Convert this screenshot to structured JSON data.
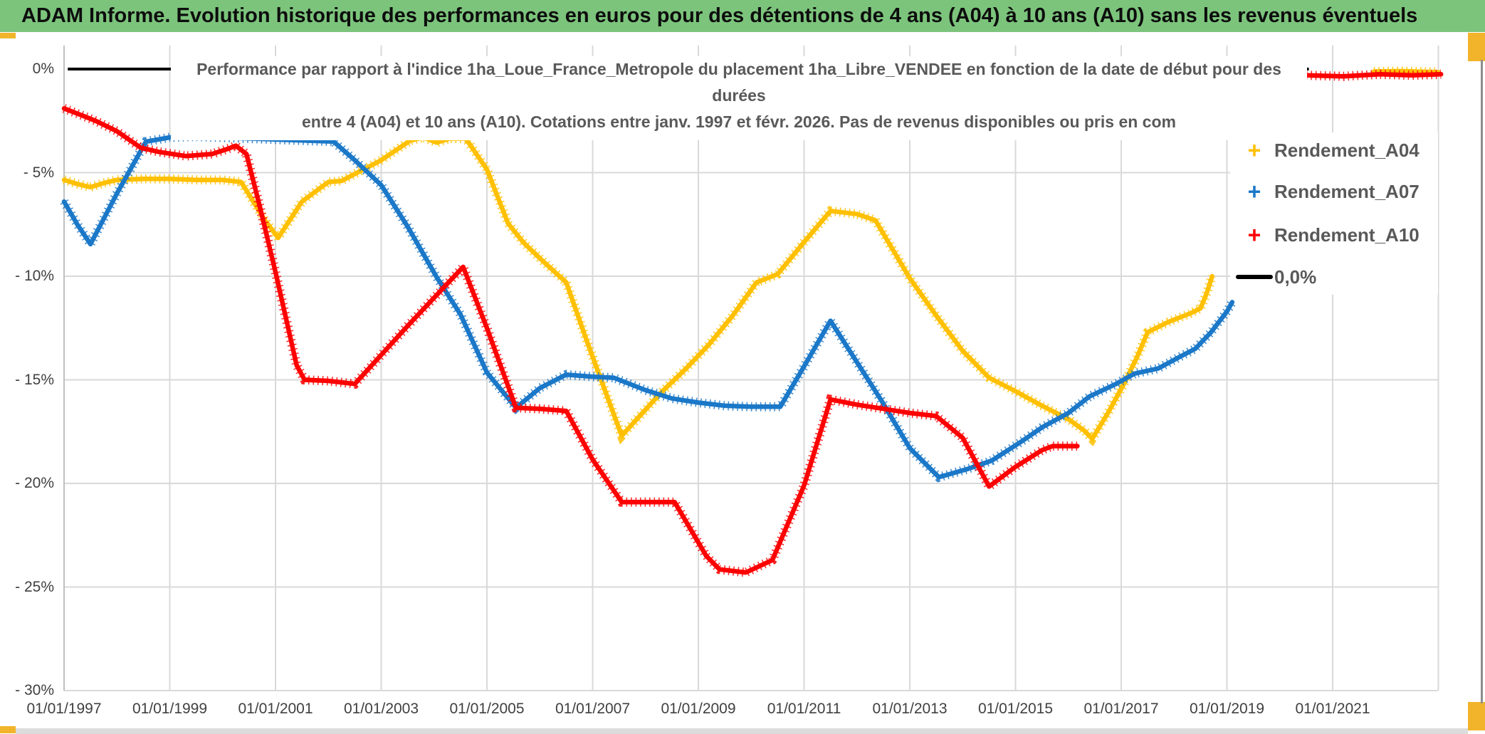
{
  "header": {
    "title": "ADAM Informe. Evolution historique des performances en euros pour des détentions de 4 ans (A04) à 10 ans (A10) sans les revenus éventuels",
    "bg_color": "#7CC47C"
  },
  "chart": {
    "title_line1": "Performance par rapport à l'indice 1ha_Loue_France_Metropole  du placement 1ha_Libre_VENDEE en fonction de la date de début pour des",
    "title_line2": "durées",
    "title_line3": "entre 4 (A04) et 10 ans (A10). Cotations entre janv. 1997 et févr. 2026. Pas de revenus disponibles ou pris en com"
  },
  "legend": {
    "items": [
      {
        "label": "Rendement_A04",
        "color": "#FFC000",
        "marker": "+"
      },
      {
        "label": "Rendement_A07",
        "color": "#1B78C8",
        "marker": "+"
      },
      {
        "label": "Rendement_A10",
        "color": "#FE0000",
        "marker": "+"
      }
    ],
    "zero_label": "0,0%",
    "zero_color": "#000000"
  },
  "accents": {
    "gold": "#F1B42B",
    "border_gray": "#8C8C8C",
    "bottom_bar_gray": "#DCDCDC",
    "grid": "#D9D9D9",
    "axis_line": "#BFBFBF",
    "label_gray": "#404040",
    "title_gray": "#595959"
  },
  "chart_data": {
    "type": "scatter",
    "title": "Performance par rapport à l'indice 1ha_Loue_France_Metropole du placement 1ha_Libre_VENDEE en fonction de la date de début pour des durées entre 4 (A04) et 10 ans (A10). Cotations entre janv. 1997 et févr. 2026. Pas de revenus disponibles ou pris en com",
    "xlabel": "",
    "ylabel": "",
    "ylim": [
      -30,
      1
    ],
    "xlim": [
      1997,
      2023
    ],
    "grid": true,
    "legend_position": "right",
    "y_tick_values": [
      0,
      -5,
      -10,
      -15,
      -20,
      -25,
      -30
    ],
    "y_tick_labels": [
      "0%",
      "- 5%",
      "- 10%",
      "- 15%",
      "- 20%",
      "- 25%",
      "- 30%"
    ],
    "x_tick_years": [
      1997,
      1999,
      2001,
      2003,
      2005,
      2007,
      2009,
      2011,
      2013,
      2015,
      2017,
      2019,
      2021
    ],
    "x_tick_labels": [
      "01/01/1997",
      "01/01/1999",
      "01/01/2001",
      "01/01/2003",
      "01/01/2005",
      "01/01/2007",
      "01/01/2009",
      "01/01/2011",
      "01/01/2013",
      "01/01/2015",
      "01/01/2017",
      "01/01/2019",
      "01/01/2021"
    ],
    "x_grid_years": [
      1997,
      1999,
      2001,
      2003,
      2005,
      2007,
      2009,
      2011,
      2013,
      2015,
      2017,
      2019,
      2021,
      2023
    ],
    "series": [
      {
        "name": "Rendement_A04",
        "color": "#FFC000",
        "points": [
          [
            1997.0,
            -5.35
          ],
          [
            1997.25,
            -5.55
          ],
          [
            1997.5,
            -5.7
          ],
          [
            1997.75,
            -5.5
          ],
          [
            1998.0,
            -5.35
          ],
          [
            1998.5,
            -5.3
          ],
          [
            1999.0,
            -5.3
          ],
          [
            1999.5,
            -5.35
          ],
          [
            2000.0,
            -5.35
          ],
          [
            2000.35,
            -5.45
          ],
          [
            2000.8,
            -7.3
          ],
          [
            2001.05,
            -8.15
          ],
          [
            2001.5,
            -6.4
          ],
          [
            2002.0,
            -5.45
          ],
          [
            2002.25,
            -5.4
          ],
          [
            2003.0,
            -4.4
          ],
          [
            2003.55,
            -3.45
          ],
          [
            2003.8,
            -3.3
          ],
          [
            2004.05,
            -3.55
          ],
          [
            2004.3,
            -3.35
          ],
          [
            2004.6,
            -3.35
          ],
          [
            2005.0,
            -4.85
          ],
          [
            2005.4,
            -7.45
          ],
          [
            2005.7,
            -8.4
          ],
          [
            2006.05,
            -9.25
          ],
          [
            2006.5,
            -10.3
          ],
          [
            2006.9,
            -13.2
          ],
          [
            2007.55,
            -17.7
          ],
          [
            2008.3,
            -15.6
          ],
          [
            2008.75,
            -14.5
          ],
          [
            2009.2,
            -13.3
          ],
          [
            2009.65,
            -11.9
          ],
          [
            2010.1,
            -10.3
          ],
          [
            2010.5,
            -9.9
          ],
          [
            2011.0,
            -8.35
          ],
          [
            2011.5,
            -6.85
          ],
          [
            2012.0,
            -7.0
          ],
          [
            2012.35,
            -7.3
          ],
          [
            2013.0,
            -10.1
          ],
          [
            2013.5,
            -11.9
          ],
          [
            2014.0,
            -13.6
          ],
          [
            2014.5,
            -14.9
          ],
          [
            2015.0,
            -15.55
          ],
          [
            2015.5,
            -16.25
          ],
          [
            2016.0,
            -16.9
          ],
          [
            2016.3,
            -17.45
          ],
          [
            2016.45,
            -17.85
          ],
          [
            2016.75,
            -16.6
          ],
          [
            2017.05,
            -15.2
          ],
          [
            2017.3,
            -13.9
          ],
          [
            2017.5,
            -12.7
          ],
          [
            2017.9,
            -12.2
          ],
          [
            2018.3,
            -11.8
          ],
          [
            2018.5,
            -11.55
          ],
          [
            2018.62,
            -10.8
          ],
          [
            2018.72,
            -10.0
          ]
        ],
        "points2": [
          [
            2021.78,
            -0.12
          ],
          [
            2022.3,
            -0.1
          ],
          [
            2023.0,
            -0.15
          ]
        ]
      },
      {
        "name": "Rendement_A07",
        "color": "#1B78C8",
        "points": [
          [
            1997.0,
            -6.4
          ],
          [
            1997.25,
            -7.5
          ],
          [
            1997.5,
            -8.45
          ],
          [
            1998.0,
            -6.0
          ],
          [
            1998.55,
            -3.5
          ],
          [
            1999.0,
            -3.3
          ],
          [
            1999.45,
            -3.25
          ],
          [
            2002.1,
            -3.5
          ],
          [
            2002.5,
            -4.4
          ],
          [
            2003.0,
            -5.6
          ],
          [
            2003.5,
            -7.6
          ],
          [
            2004.05,
            -10.05
          ],
          [
            2004.5,
            -11.85
          ],
          [
            2005.0,
            -14.65
          ],
          [
            2005.55,
            -16.35
          ],
          [
            2006.0,
            -15.4
          ],
          [
            2006.5,
            -14.75
          ],
          [
            2007.0,
            -14.85
          ],
          [
            2007.4,
            -14.9
          ],
          [
            2008.0,
            -15.5
          ],
          [
            2008.5,
            -15.9
          ],
          [
            2009.0,
            -16.1
          ],
          [
            2009.5,
            -16.25
          ],
          [
            2010.0,
            -16.3
          ],
          [
            2010.55,
            -16.3
          ],
          [
            2011.0,
            -14.35
          ],
          [
            2011.5,
            -12.15
          ],
          [
            2012.05,
            -14.35
          ],
          [
            2012.45,
            -15.95
          ],
          [
            2013.0,
            -18.3
          ],
          [
            2013.55,
            -19.7
          ],
          [
            2014.1,
            -19.3
          ],
          [
            2014.55,
            -18.9
          ],
          [
            2015.1,
            -18.0
          ],
          [
            2015.5,
            -17.3
          ],
          [
            2016.0,
            -16.6
          ],
          [
            2016.4,
            -15.8
          ],
          [
            2016.9,
            -15.2
          ],
          [
            2017.25,
            -14.7
          ],
          [
            2017.7,
            -14.45
          ],
          [
            2018.1,
            -13.9
          ],
          [
            2018.4,
            -13.5
          ],
          [
            2018.7,
            -12.7
          ],
          [
            2019.0,
            -11.7
          ],
          [
            2019.1,
            -11.25
          ]
        ],
        "points2": []
      },
      {
        "name": "Rendement_A10",
        "color": "#FE0000",
        "points": [
          [
            1997.0,
            -1.9
          ],
          [
            1997.3,
            -2.2
          ],
          [
            1997.6,
            -2.5
          ],
          [
            1998.0,
            -3.0
          ],
          [
            1998.45,
            -3.8
          ],
          [
            1998.8,
            -4.0
          ],
          [
            1999.3,
            -4.2
          ],
          [
            1999.8,
            -4.1
          ],
          [
            2000.1,
            -3.85
          ],
          [
            2000.25,
            -3.7
          ],
          [
            2000.45,
            -4.1
          ],
          [
            2000.7,
            -6.6
          ],
          [
            2001.0,
            -9.8
          ],
          [
            2001.4,
            -14.3
          ],
          [
            2001.55,
            -15.0
          ],
          [
            2002.0,
            -15.05
          ],
          [
            2002.5,
            -15.2
          ],
          [
            2003.5,
            -12.4
          ],
          [
            2004.55,
            -9.55
          ],
          [
            2005.0,
            -12.5
          ],
          [
            2005.55,
            -16.35
          ],
          [
            2006.0,
            -16.4
          ],
          [
            2006.5,
            -16.5
          ],
          [
            2007.0,
            -18.85
          ],
          [
            2007.55,
            -20.9
          ],
          [
            2008.55,
            -20.9
          ],
          [
            2009.15,
            -23.5
          ],
          [
            2009.4,
            -24.15
          ],
          [
            2009.9,
            -24.3
          ],
          [
            2010.4,
            -23.7
          ],
          [
            2011.0,
            -20.1
          ],
          [
            2011.5,
            -15.95
          ],
          [
            2012.0,
            -16.2
          ],
          [
            2012.5,
            -16.4
          ],
          [
            2013.0,
            -16.6
          ],
          [
            2013.5,
            -16.75
          ],
          [
            2014.0,
            -17.8
          ],
          [
            2014.5,
            -20.15
          ],
          [
            2015.0,
            -19.2
          ],
          [
            2015.5,
            -18.4
          ],
          [
            2015.7,
            -18.2
          ],
          [
            2016.17,
            -18.2
          ]
        ],
        "points2": [
          [
            2020.5,
            -0.3
          ],
          [
            2021.2,
            -0.35
          ],
          [
            2021.9,
            -0.25
          ],
          [
            2022.5,
            -0.3
          ],
          [
            2023.05,
            -0.25
          ]
        ]
      },
      {
        "name": "0,0%",
        "color": "#000000",
        "points": [
          [
            1997.0,
            0
          ],
          [
            2020.55,
            0
          ]
        ],
        "points2": [],
        "is_reference_line": true
      }
    ]
  }
}
